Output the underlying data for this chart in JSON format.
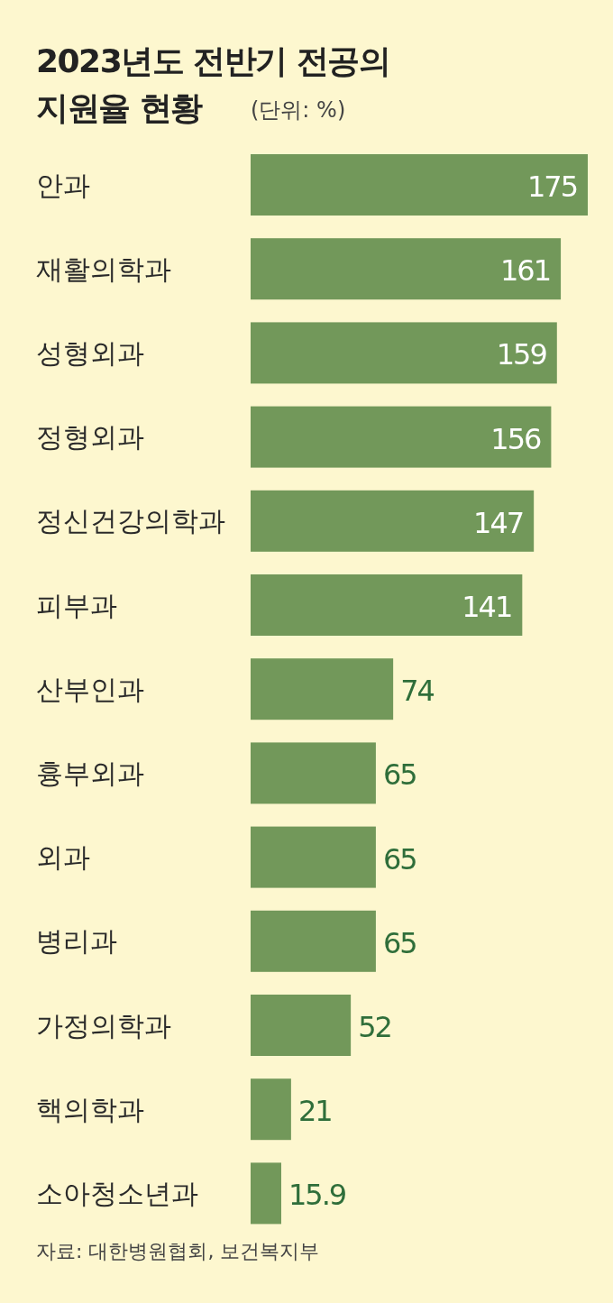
{
  "chart_data": {
    "type": "bar",
    "orientation": "horizontal",
    "title": "2023년도 전반기 전공의 지원율 현황",
    "subtitle": "(단위: %)",
    "categories": [
      "안과",
      "재활의학과",
      "성형외과",
      "정형외과",
      "정신건강의학과",
      "피부과",
      "산부인과",
      "흉부외과",
      "외과",
      "병리과",
      "가정의학과",
      "핵의학과",
      "소아청소년과"
    ],
    "values": [
      175,
      161,
      159,
      156,
      147,
      141,
      74,
      65,
      65,
      65,
      52,
      21,
      15.9
    ],
    "color": "#72985a",
    "data_labels": true,
    "annotations": [
      "자료: 대한병원협회, 보건복지부"
    ]
  }
}
